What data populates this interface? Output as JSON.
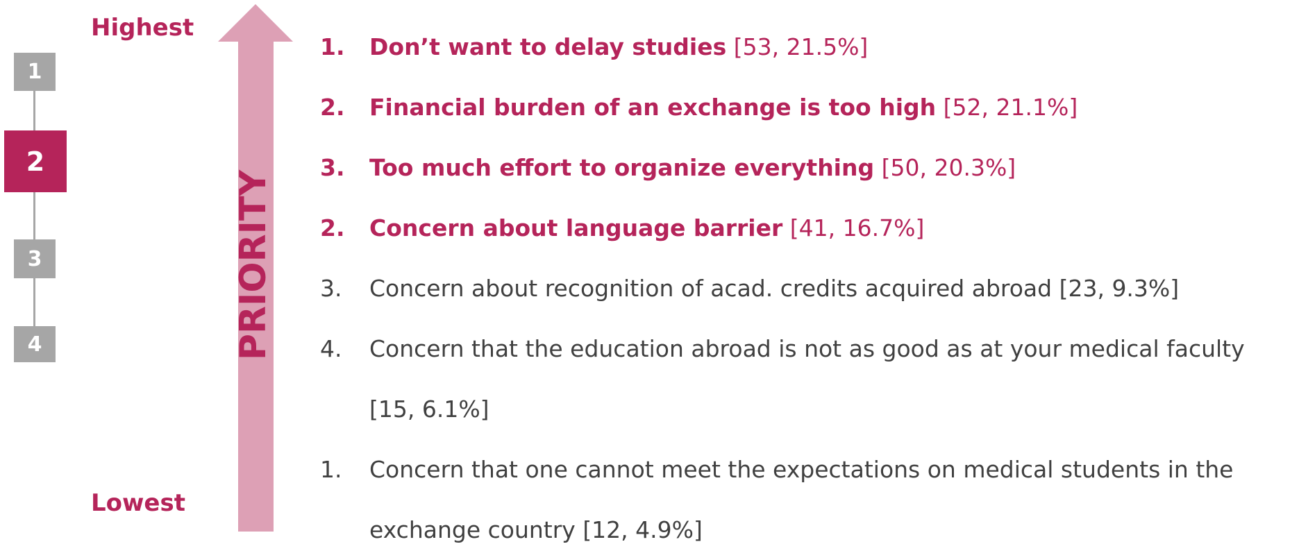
{
  "scale": {
    "top": "Highest",
    "bottom": "Lowest",
    "axis": "PRIORITY"
  },
  "steps": [
    {
      "label": "1",
      "active": false
    },
    {
      "label": "2",
      "active": true
    },
    {
      "label": "3",
      "active": false
    },
    {
      "label": "4",
      "active": false
    }
  ],
  "items": [
    {
      "number": "1.",
      "text": "Don’t want to delay studies",
      "stats": "[53, 21.5%]",
      "highlighted": true
    },
    {
      "number": "2.",
      "text": "Financial burden of an exchange is too high",
      "stats": "[52, 21.1%]",
      "highlighted": true
    },
    {
      "number": "3.",
      "text": "Too much effort to organize everything",
      "stats": "[50, 20.3%]",
      "highlighted": true
    },
    {
      "number": "2.",
      "text": "Concern about language barrier",
      "stats": "[41, 16.7%]",
      "highlighted": true
    },
    {
      "number": "3.",
      "text": "Concern about recognition of acad. credits acquired abroad",
      "stats": "[23, 9.3%]",
      "highlighted": false
    },
    {
      "number": "4.",
      "text": "Concern that the education abroad is not as good as at your medical faculty",
      "stats": "[15, 6.1%]",
      "highlighted": false
    },
    {
      "number": "1.",
      "text": "Concern that one cannot meet the expectations on medical students in the exchange country",
      "stats": "[12, 4.9%]",
      "highlighted": false
    }
  ]
}
